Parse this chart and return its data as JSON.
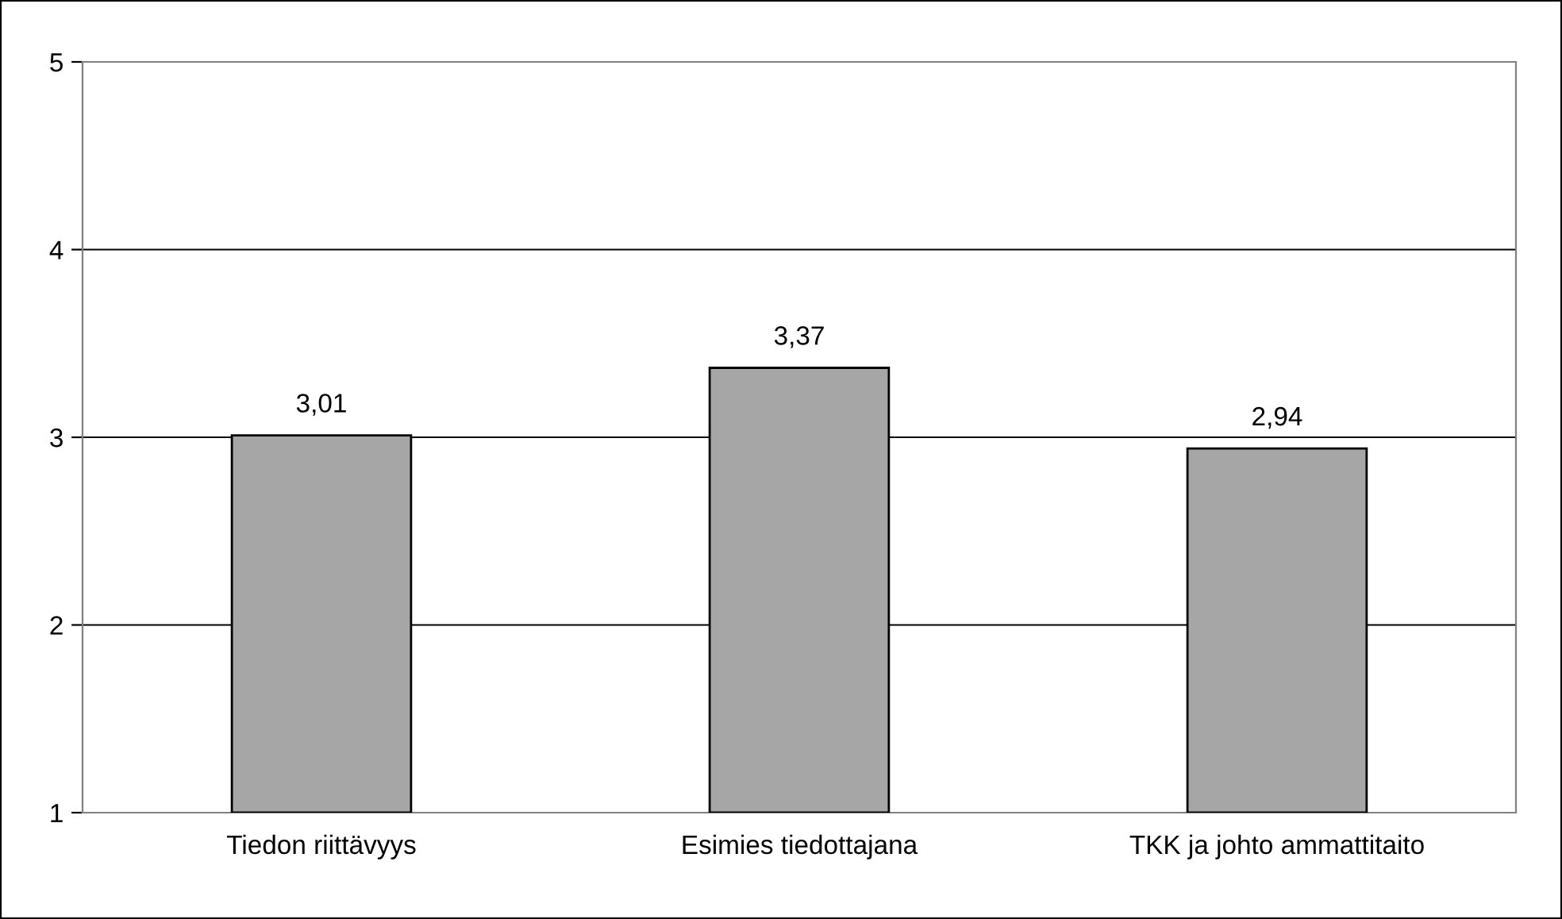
{
  "chart_data": {
    "type": "bar",
    "categories": [
      "Tiedon riittävyys",
      "Esimies tiedottajana",
      "TKK ja johto ammattitaito"
    ],
    "values": [
      3.01,
      3.37,
      2.94
    ],
    "value_labels": [
      "3,01",
      "3,37",
      "2,94"
    ],
    "color": "#a6a6a6",
    "ylim": [
      1,
      5
    ],
    "yticks": [
      1,
      2,
      3,
      4,
      5
    ],
    "grid": "y",
    "legend": false
  }
}
